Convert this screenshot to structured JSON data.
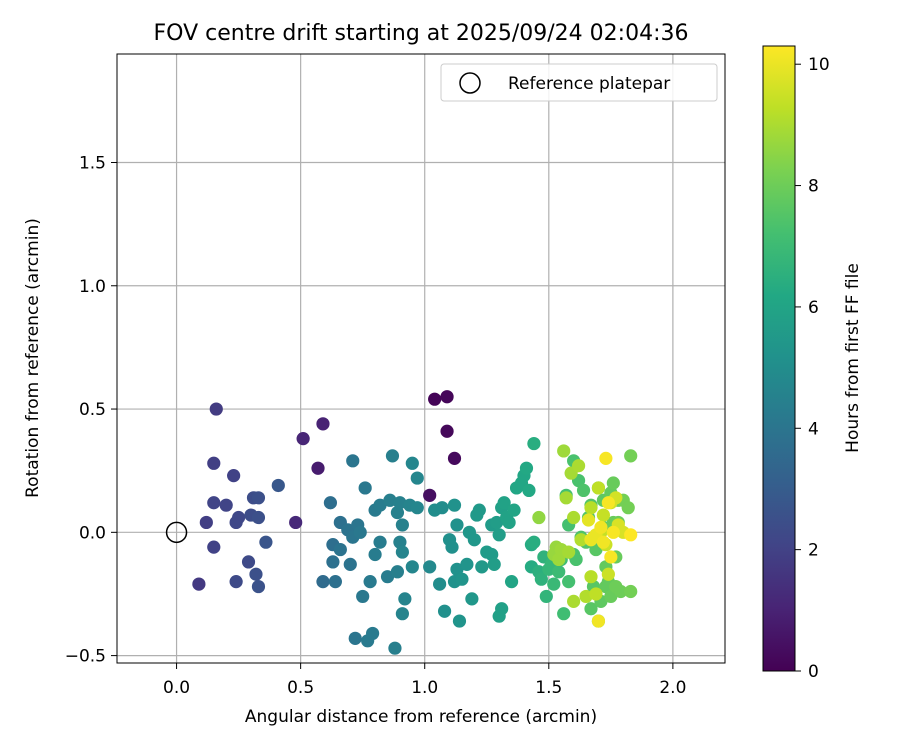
{
  "chart_data": {
    "type": "scatter",
    "title": "FOV centre drift starting at 2025/09/24 02:04:36",
    "xlabel": "Angular distance from reference (arcmin)",
    "ylabel": "Rotation from reference (arcmin)",
    "xlim": [
      -0.24,
      2.21
    ],
    "ylim": [
      -0.53,
      1.94
    ],
    "xticks": [
      0.0,
      0.5,
      1.0,
      1.5,
      2.0
    ],
    "xtick_labels": [
      "0.0",
      "0.5",
      "1.0",
      "1.5",
      "2.0"
    ],
    "yticks": [
      -0.5,
      0.0,
      0.5,
      1.0,
      1.5
    ],
    "ytick_labels": [
      "−0.5",
      "0.0",
      "0.5",
      "1.0",
      "1.5"
    ],
    "grid": true,
    "legend": {
      "placement": "top-right",
      "entries": [
        "Reference platepar"
      ]
    },
    "reference_point": {
      "x": 0.0,
      "y": 0.0
    },
    "colorbar": {
      "label": "Hours from first FF file",
      "range": [
        0,
        10.3
      ],
      "ticks": [
        0,
        2,
        4,
        6,
        8,
        10
      ],
      "tick_labels": [
        "0",
        "2",
        "4",
        "6",
        "8",
        "10"
      ],
      "colormap": "viridis"
    },
    "points": [
      {
        "x": 1.04,
        "y": 0.54,
        "h": 0.1
      },
      {
        "x": 1.09,
        "y": 0.55,
        "h": 0.15
      },
      {
        "x": 1.09,
        "y": 0.41,
        "h": 0.2
      },
      {
        "x": 1.12,
        "y": 0.3,
        "h": 0.25
      },
      {
        "x": 1.02,
        "y": 0.15,
        "h": 0.4
      },
      {
        "x": 0.57,
        "y": 0.26,
        "h": 0.8
      },
      {
        "x": 0.59,
        "y": 0.44,
        "h": 1.0
      },
      {
        "x": 0.51,
        "y": 0.38,
        "h": 1.1
      },
      {
        "x": 0.48,
        "y": 0.04,
        "h": 1.2
      },
      {
        "x": 0.09,
        "y": -0.21,
        "h": 1.7
      },
      {
        "x": 0.16,
        "y": 0.5,
        "h": 1.8
      },
      {
        "x": 0.15,
        "y": 0.28,
        "h": 1.9
      },
      {
        "x": 0.23,
        "y": 0.23,
        "h": 2.0
      },
      {
        "x": 0.12,
        "y": 0.04,
        "h": 1.9
      },
      {
        "x": 0.15,
        "y": -0.06,
        "h": 2.0
      },
      {
        "x": 0.15,
        "y": 0.12,
        "h": 2.1
      },
      {
        "x": 0.2,
        "y": 0.11,
        "h": 2.1
      },
      {
        "x": 0.24,
        "y": 0.04,
        "h": 2.2
      },
      {
        "x": 0.25,
        "y": 0.06,
        "h": 2.2
      },
      {
        "x": 0.24,
        "y": -0.2,
        "h": 2.3
      },
      {
        "x": 0.29,
        "y": -0.12,
        "h": 2.3
      },
      {
        "x": 0.3,
        "y": 0.07,
        "h": 2.4
      },
      {
        "x": 0.31,
        "y": 0.14,
        "h": 2.4
      },
      {
        "x": 0.33,
        "y": 0.14,
        "h": 2.5
      },
      {
        "x": 0.33,
        "y": 0.06,
        "h": 2.5
      },
      {
        "x": 0.32,
        "y": -0.17,
        "h": 2.5
      },
      {
        "x": 0.33,
        "y": -0.22,
        "h": 2.6
      },
      {
        "x": 0.36,
        "y": -0.04,
        "h": 2.7
      },
      {
        "x": 0.41,
        "y": 0.19,
        "h": 2.8
      },
      {
        "x": 0.59,
        "y": -0.2,
        "h": 3.6
      },
      {
        "x": 0.62,
        "y": 0.12,
        "h": 3.7
      },
      {
        "x": 0.63,
        "y": -0.05,
        "h": 3.7
      },
      {
        "x": 0.63,
        "y": -0.12,
        "h": 3.8
      },
      {
        "x": 0.64,
        "y": -0.2,
        "h": 3.8
      },
      {
        "x": 0.66,
        "y": 0.04,
        "h": 3.8
      },
      {
        "x": 0.66,
        "y": -0.07,
        "h": 3.9
      },
      {
        "x": 0.69,
        "y": 0.01,
        "h": 3.9
      },
      {
        "x": 0.7,
        "y": -0.13,
        "h": 3.9
      },
      {
        "x": 0.71,
        "y": -0.02,
        "h": 4.0
      },
      {
        "x": 0.71,
        "y": 0.29,
        "h": 4.0
      },
      {
        "x": 0.72,
        "y": -0.43,
        "h": 4.0
      },
      {
        "x": 0.73,
        "y": 0.03,
        "h": 4.0
      },
      {
        "x": 0.74,
        "y": 0.0,
        "h": 4.1
      },
      {
        "x": 0.75,
        "y": -0.26,
        "h": 4.1
      },
      {
        "x": 0.76,
        "y": 0.18,
        "h": 4.1
      },
      {
        "x": 0.77,
        "y": -0.44,
        "h": 4.2
      },
      {
        "x": 0.78,
        "y": -0.2,
        "h": 4.2
      },
      {
        "x": 0.79,
        "y": -0.41,
        "h": 4.2
      },
      {
        "x": 0.8,
        "y": 0.09,
        "h": 4.2
      },
      {
        "x": 0.8,
        "y": -0.09,
        "h": 4.3
      },
      {
        "x": 0.82,
        "y": 0.11,
        "h": 4.3
      },
      {
        "x": 0.82,
        "y": -0.04,
        "h": 4.3
      },
      {
        "x": 0.85,
        "y": -0.18,
        "h": 4.3
      },
      {
        "x": 0.86,
        "y": 0.13,
        "h": 4.4
      },
      {
        "x": 0.87,
        "y": 0.31,
        "h": 4.4
      },
      {
        "x": 0.88,
        "y": -0.47,
        "h": 4.4
      },
      {
        "x": 0.89,
        "y": -0.16,
        "h": 4.4
      },
      {
        "x": 0.89,
        "y": 0.08,
        "h": 4.5
      },
      {
        "x": 0.9,
        "y": 0.12,
        "h": 4.5
      },
      {
        "x": 0.9,
        "y": -0.04,
        "h": 4.5
      },
      {
        "x": 0.91,
        "y": 0.03,
        "h": 4.5
      },
      {
        "x": 0.91,
        "y": -0.08,
        "h": 4.6
      },
      {
        "x": 0.91,
        "y": -0.33,
        "h": 4.6
      },
      {
        "x": 0.92,
        "y": -0.27,
        "h": 4.6
      },
      {
        "x": 0.94,
        "y": 0.11,
        "h": 4.6
      },
      {
        "x": 0.95,
        "y": 0.28,
        "h": 4.7
      },
      {
        "x": 0.95,
        "y": -0.14,
        "h": 4.7
      },
      {
        "x": 0.97,
        "y": 0.22,
        "h": 4.7
      },
      {
        "x": 0.97,
        "y": 0.1,
        "h": 4.7
      },
      {
        "x": 1.02,
        "y": -0.14,
        "h": 4.8
      },
      {
        "x": 1.04,
        "y": 0.09,
        "h": 5.0
      },
      {
        "x": 1.06,
        "y": -0.21,
        "h": 5.0
      },
      {
        "x": 1.07,
        "y": 0.1,
        "h": 5.0
      },
      {
        "x": 1.08,
        "y": -0.32,
        "h": 5.1
      },
      {
        "x": 1.1,
        "y": -0.03,
        "h": 5.1
      },
      {
        "x": 1.11,
        "y": -0.06,
        "h": 5.1
      },
      {
        "x": 1.12,
        "y": 0.11,
        "h": 5.2
      },
      {
        "x": 1.12,
        "y": -0.2,
        "h": 5.2
      },
      {
        "x": 1.13,
        "y": -0.15,
        "h": 5.2
      },
      {
        "x": 1.13,
        "y": 0.03,
        "h": 5.2
      },
      {
        "x": 1.14,
        "y": -0.36,
        "h": 5.3
      },
      {
        "x": 1.15,
        "y": -0.19,
        "h": 5.3
      },
      {
        "x": 1.17,
        "y": -0.13,
        "h": 5.3
      },
      {
        "x": 1.18,
        "y": 0.0,
        "h": 5.4
      },
      {
        "x": 1.19,
        "y": -0.27,
        "h": 5.4
      },
      {
        "x": 1.2,
        "y": -0.03,
        "h": 5.4
      },
      {
        "x": 1.21,
        "y": 0.07,
        "h": 5.5
      },
      {
        "x": 1.22,
        "y": 0.09,
        "h": 5.5
      },
      {
        "x": 1.23,
        "y": -0.14,
        "h": 5.5
      },
      {
        "x": 1.25,
        "y": -0.08,
        "h": 5.6
      },
      {
        "x": 1.27,
        "y": 0.03,
        "h": 5.6
      },
      {
        "x": 1.27,
        "y": -0.09,
        "h": 5.6
      },
      {
        "x": 1.28,
        "y": -0.13,
        "h": 5.7
      },
      {
        "x": 1.29,
        "y": 0.04,
        "h": 5.7
      },
      {
        "x": 1.3,
        "y": -0.01,
        "h": 5.7
      },
      {
        "x": 1.3,
        "y": -0.34,
        "h": 5.8
      },
      {
        "x": 1.31,
        "y": -0.31,
        "h": 5.8
      },
      {
        "x": 1.31,
        "y": 0.1,
        "h": 5.8
      },
      {
        "x": 1.32,
        "y": 0.12,
        "h": 5.9
      },
      {
        "x": 1.33,
        "y": 0.06,
        "h": 5.9
      },
      {
        "x": 1.34,
        "y": 0.04,
        "h": 5.9
      },
      {
        "x": 1.35,
        "y": -0.2,
        "h": 6.0
      },
      {
        "x": 1.36,
        "y": 0.09,
        "h": 6.0
      },
      {
        "x": 1.37,
        "y": 0.18,
        "h": 6.1
      },
      {
        "x": 1.39,
        "y": 0.2,
        "h": 6.1
      },
      {
        "x": 1.4,
        "y": 0.23,
        "h": 6.1
      },
      {
        "x": 1.41,
        "y": 0.26,
        "h": 6.2
      },
      {
        "x": 1.42,
        "y": 0.17,
        "h": 6.2
      },
      {
        "x": 1.43,
        "y": -0.05,
        "h": 6.3
      },
      {
        "x": 1.43,
        "y": -0.14,
        "h": 6.3
      },
      {
        "x": 1.44,
        "y": 0.36,
        "h": 6.4
      },
      {
        "x": 1.44,
        "y": -0.04,
        "h": 6.4
      },
      {
        "x": 1.46,
        "y": -0.16,
        "h": 6.5
      },
      {
        "x": 1.47,
        "y": -0.19,
        "h": 6.6
      },
      {
        "x": 1.48,
        "y": -0.1,
        "h": 6.6
      },
      {
        "x": 1.49,
        "y": -0.26,
        "h": 6.7
      },
      {
        "x": 1.5,
        "y": -0.15,
        "h": 6.8
      },
      {
        "x": 1.51,
        "y": -0.13,
        "h": 6.8
      },
      {
        "x": 1.52,
        "y": -0.21,
        "h": 6.9
      },
      {
        "x": 1.53,
        "y": -0.08,
        "h": 7.0
      },
      {
        "x": 1.54,
        "y": -0.16,
        "h": 7.0
      },
      {
        "x": 1.55,
        "y": -0.11,
        "h": 7.1
      },
      {
        "x": 1.56,
        "y": -0.33,
        "h": 7.1
      },
      {
        "x": 1.57,
        "y": 0.15,
        "h": 7.2
      },
      {
        "x": 1.58,
        "y": -0.2,
        "h": 7.2
      },
      {
        "x": 1.58,
        "y": 0.03,
        "h": 7.2
      },
      {
        "x": 1.6,
        "y": 0.29,
        "h": 7.3
      },
      {
        "x": 1.6,
        "y": -0.09,
        "h": 7.3
      },
      {
        "x": 1.61,
        "y": -0.11,
        "h": 7.3
      },
      {
        "x": 1.62,
        "y": 0.21,
        "h": 7.3
      },
      {
        "x": 1.63,
        "y": -0.02,
        "h": 7.4
      },
      {
        "x": 1.64,
        "y": 0.17,
        "h": 7.4
      },
      {
        "x": 1.65,
        "y": -0.04,
        "h": 7.5
      },
      {
        "x": 1.66,
        "y": 0.06,
        "h": 7.5
      },
      {
        "x": 1.67,
        "y": 0.11,
        "h": 7.5
      },
      {
        "x": 1.67,
        "y": -0.31,
        "h": 7.6
      },
      {
        "x": 1.68,
        "y": -0.22,
        "h": 7.6
      },
      {
        "x": 1.69,
        "y": -0.07,
        "h": 7.6
      },
      {
        "x": 1.7,
        "y": 0.18,
        "h": 7.6
      },
      {
        "x": 1.7,
        "y": -0.36,
        "h": 7.7
      },
      {
        "x": 1.71,
        "y": -0.28,
        "h": 7.7
      },
      {
        "x": 1.72,
        "y": 0.02,
        "h": 7.7
      },
      {
        "x": 1.72,
        "y": 0.13,
        "h": 7.7
      },
      {
        "x": 1.73,
        "y": -0.22,
        "h": 7.8
      },
      {
        "x": 1.73,
        "y": -0.14,
        "h": 7.8
      },
      {
        "x": 1.74,
        "y": -0.2,
        "h": 7.8
      },
      {
        "x": 1.75,
        "y": 0.16,
        "h": 7.8
      },
      {
        "x": 1.75,
        "y": -0.26,
        "h": 7.9
      },
      {
        "x": 1.76,
        "y": 0.2,
        "h": 7.9
      },
      {
        "x": 1.76,
        "y": 0.04,
        "h": 7.9
      },
      {
        "x": 1.77,
        "y": -0.1,
        "h": 7.9
      },
      {
        "x": 1.77,
        "y": -0.22,
        "h": 8.0
      },
      {
        "x": 1.78,
        "y": 0.13,
        "h": 8.0
      },
      {
        "x": 1.78,
        "y": 0.04,
        "h": 8.0
      },
      {
        "x": 1.79,
        "y": -0.24,
        "h": 8.0
      },
      {
        "x": 1.8,
        "y": 0.13,
        "h": 8.1
      },
      {
        "x": 1.82,
        "y": 0.1,
        "h": 8.1
      },
      {
        "x": 1.83,
        "y": 0.31,
        "h": 8.1
      },
      {
        "x": 1.83,
        "y": -0.24,
        "h": 8.1
      },
      {
        "x": 1.46,
        "y": 0.06,
        "h": 8.6
      },
      {
        "x": 1.52,
        "y": -0.09,
        "h": 8.7
      },
      {
        "x": 1.53,
        "y": -0.06,
        "h": 8.7
      },
      {
        "x": 1.54,
        "y": -0.11,
        "h": 8.8
      },
      {
        "x": 1.55,
        "y": -0.07,
        "h": 8.8
      },
      {
        "x": 1.56,
        "y": 0.33,
        "h": 8.8
      },
      {
        "x": 1.57,
        "y": 0.14,
        "h": 8.9
      },
      {
        "x": 1.58,
        "y": -0.08,
        "h": 8.9
      },
      {
        "x": 1.59,
        "y": 0.24,
        "h": 8.9
      },
      {
        "x": 1.6,
        "y": 0.06,
        "h": 9.0
      },
      {
        "x": 1.6,
        "y": -0.28,
        "h": 9.0
      },
      {
        "x": 1.62,
        "y": 0.27,
        "h": 9.0
      },
      {
        "x": 1.63,
        "y": -0.03,
        "h": 9.1
      },
      {
        "x": 1.65,
        "y": -0.26,
        "h": 9.1
      },
      {
        "x": 1.67,
        "y": -0.18,
        "h": 9.2
      },
      {
        "x": 1.67,
        "y": 0.1,
        "h": 9.2
      },
      {
        "x": 1.68,
        "y": -0.02,
        "h": 9.3
      },
      {
        "x": 1.69,
        "y": -0.25,
        "h": 9.3
      },
      {
        "x": 1.7,
        "y": 0.18,
        "h": 9.3
      },
      {
        "x": 1.71,
        "y": 0.0,
        "h": 9.4
      },
      {
        "x": 1.72,
        "y": 0.07,
        "h": 9.4
      },
      {
        "x": 1.73,
        "y": -0.05,
        "h": 9.5
      },
      {
        "x": 1.74,
        "y": -0.17,
        "h": 9.5
      },
      {
        "x": 1.75,
        "y": 0.12,
        "h": 9.6
      },
      {
        "x": 1.77,
        "y": 0.14,
        "h": 9.6
      },
      {
        "x": 1.78,
        "y": 0.03,
        "h": 9.7
      },
      {
        "x": 1.8,
        "y": 0.0,
        "h": 9.7
      },
      {
        "x": 1.66,
        "y": 0.05,
        "h": 9.9
      },
      {
        "x": 1.67,
        "y": -0.03,
        "h": 10.0
      },
      {
        "x": 1.69,
        "y": -0.01,
        "h": 10.0
      },
      {
        "x": 1.7,
        "y": -0.36,
        "h": 10.1
      },
      {
        "x": 1.71,
        "y": 0.02,
        "h": 10.1
      },
      {
        "x": 1.72,
        "y": -0.04,
        "h": 10.1
      },
      {
        "x": 1.73,
        "y": 0.3,
        "h": 10.2
      },
      {
        "x": 1.74,
        "y": 0.12,
        "h": 10.2
      },
      {
        "x": 1.75,
        "y": -0.1,
        "h": 10.2
      },
      {
        "x": 1.76,
        "y": 0.0,
        "h": 10.2
      },
      {
        "x": 1.83,
        "y": -0.01,
        "h": 10.3
      }
    ]
  }
}
